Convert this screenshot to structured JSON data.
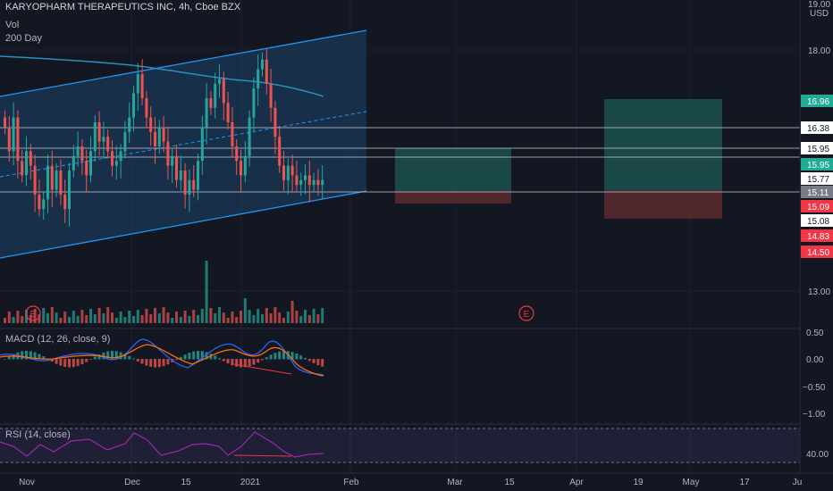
{
  "header": {
    "title": "KARYOPHARM THERAPEUTICS INC, 4h, Cboe BZX",
    "vol_label": "Vol",
    "ma_label": "200 Day",
    "currency": "USD"
  },
  "price_axis": {
    "ticks": [
      "19.00",
      "18.00",
      "13.00"
    ],
    "labels": [
      {
        "value": 16.96,
        "text": "16.96",
        "bg": "#22ab94",
        "fg": "#ffffff"
      },
      {
        "value": 16.38,
        "text": "16.38",
        "bg": "#ffffff",
        "fg": "#131722"
      },
      {
        "value": 15.95,
        "text": "15.95",
        "bg": "#ffffff",
        "fg": "#131722"
      },
      {
        "value": 15.95,
        "text": "15.95",
        "bg": "#22ab94",
        "fg": "#ffffff"
      },
      {
        "value": 15.77,
        "text": "15.77",
        "bg": "#ffffff",
        "fg": "#131722"
      },
      {
        "value": 15.11,
        "text": "15.11",
        "bg": "#787b86",
        "fg": "#ffffff"
      },
      {
        "value": 15.09,
        "text": "15.09",
        "bg": "#f23645",
        "fg": "#ffffff"
      },
      {
        "value": 15.08,
        "text": "15.08",
        "bg": "#ffffff",
        "fg": "#131722"
      },
      {
        "value": 14.83,
        "text": "14.83",
        "bg": "#f23645",
        "fg": "#ffffff"
      },
      {
        "value": 14.5,
        "text": "14.50",
        "bg": "#f23645",
        "fg": "#ffffff"
      }
    ]
  },
  "time_axis": [
    "Nov",
    "Dec",
    "15",
    "2021",
    "Feb",
    "Mar",
    "15",
    "Apr",
    "19",
    "May",
    "17",
    "Ju"
  ],
  "macd": {
    "label": "MACD (12, 26, close, 9)",
    "ticks": [
      "0.50",
      "0.00",
      "−0.50",
      "−1.00"
    ]
  },
  "rsi": {
    "label": "RSI (14, close)",
    "ticks": [
      "40.00"
    ]
  },
  "events": [
    "E",
    "E"
  ],
  "colors": {
    "up": "#26a69a",
    "down": "#ef5350",
    "channel": "#2196f3",
    "ma": "#2a8fbd",
    "rsi": "#9c27b0",
    "macd_line": "#2962ff",
    "signal_line": "#ff6d00"
  },
  "chart_data": {
    "type": "candlestick",
    "title": "KARYOPHARM THERAPEUTICS INC, 4h, Cboe BZX",
    "ylabel": "USD",
    "ylim": [
      12.6,
      19.0
    ],
    "close": [
      16.4,
      15.9,
      16.6,
      15.7,
      15.4,
      15.9,
      15.6,
      15.0,
      14.7,
      14.9,
      15.6,
      15.1,
      15.5,
      15.0,
      14.7,
      15.5,
      15.8,
      16.0,
      15.7,
      15.4,
      15.9,
      16.5,
      16.1,
      16.2,
      15.9,
      15.6,
      15.7,
      15.9,
      16.3,
      16.6,
      17.1,
      17.5,
      17.0,
      16.6,
      16.3,
      16.0,
      16.4,
      16.1,
      15.6,
      15.8,
      15.3,
      15.5,
      15.0,
      15.3,
      15.1,
      15.7,
      16.4,
      17.0,
      16.8,
      17.3,
      17.4,
      16.9,
      16.5,
      16.0,
      15.7,
      15.4,
      15.8,
      16.6,
      17.2,
      17.6,
      17.8,
      17.3,
      16.8,
      16.2,
      15.6,
      15.3,
      15.6,
      15.4,
      15.2,
      15.3,
      15.4,
      15.2,
      15.3,
      15.2,
      15.3
    ]
  }
}
